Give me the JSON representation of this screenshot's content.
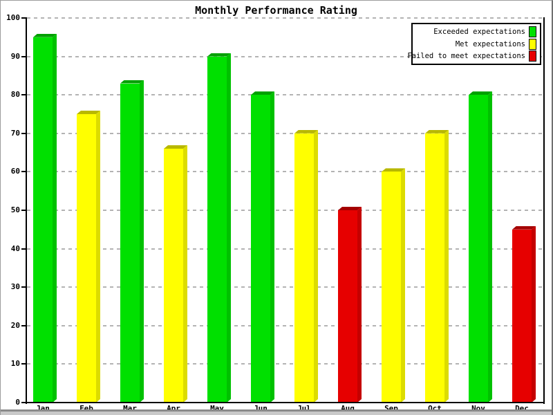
{
  "chart_data": {
    "type": "bar",
    "title": "Monthly Performance Rating",
    "categories": [
      "Jan",
      "Feb",
      "Mar",
      "Apr",
      "May",
      "Jun",
      "Jul",
      "Aug",
      "Sep",
      "Oct",
      "Nov",
      "Dec"
    ],
    "values": [
      95,
      75,
      83,
      66,
      90,
      80,
      70,
      50,
      60,
      70,
      80,
      45
    ],
    "bar_ratings": [
      "green",
      "yellow",
      "green",
      "yellow",
      "green",
      "green",
      "yellow",
      "red",
      "yellow",
      "yellow",
      "green",
      "red"
    ],
    "xlabel": "",
    "ylabel": "",
    "ylim": [
      0,
      100
    ],
    "ytick_interval": 10,
    "ytick_labels": [
      "0",
      "10",
      "20",
      "30",
      "40",
      "50",
      "60",
      "70",
      "80",
      "90",
      "100"
    ],
    "grid": "horizontal-dashed",
    "grid_color": "#b3b3b3",
    "axis_color": "#000000",
    "bar_style": "3d",
    "legend": {
      "position": "top-right",
      "entries": [
        {
          "label": "Exceeded expectations",
          "color_name": "green",
          "color": "#00e000"
        },
        {
          "label": "Met expectations",
          "color_name": "yellow",
          "color": "#ffff00"
        },
        {
          "label": "Failed to meet expectations",
          "color_name": "red",
          "color": "#e60000"
        }
      ]
    },
    "palette": {
      "green": {
        "front": "#00e000",
        "top": "#00a000",
        "side": "#00c100"
      },
      "yellow": {
        "front": "#ffff00",
        "top": "#b8b800",
        "side": "#dcdc00"
      },
      "red": {
        "front": "#e60000",
        "top": "#a40000",
        "side": "#c50000"
      }
    }
  }
}
